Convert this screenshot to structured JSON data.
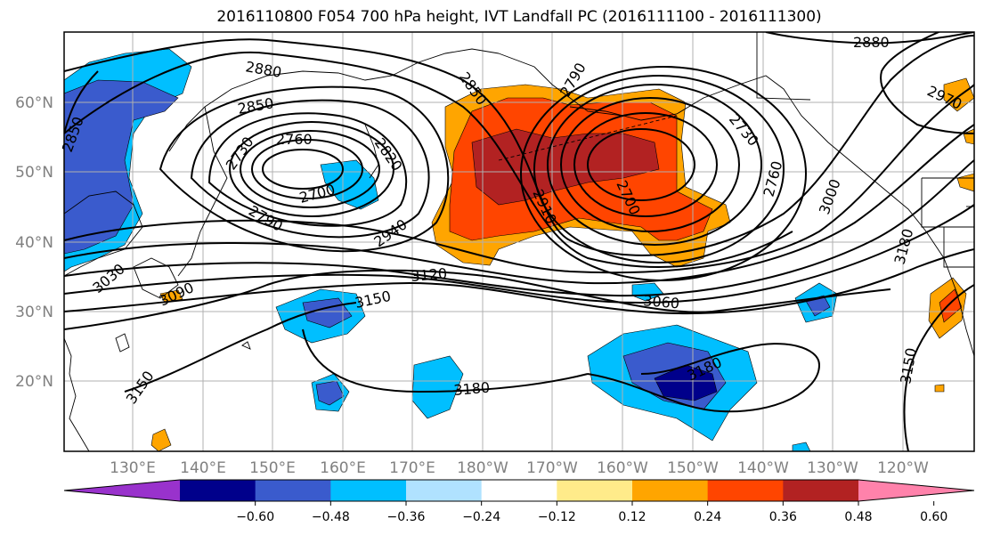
{
  "title": "2016110800 F054 700 hPa height, IVT Landfall PC (2016111100 - 2016111300)",
  "lat_labels": [
    "60°N",
    "50°N",
    "40°N",
    "30°N",
    "20°N"
  ],
  "lon_labels": [
    "130°E",
    "140°E",
    "150°E",
    "160°E",
    "170°E",
    "180°W",
    "170°W",
    "160°W",
    "150°W",
    "140°W",
    "130°W",
    "120°W"
  ],
  "colorbar": {
    "ticks": [
      "−0.60",
      "−0.48",
      "−0.36",
      "−0.24",
      "−0.12",
      "0.12",
      "0.24",
      "0.36",
      "0.48",
      "0.60"
    ],
    "colors": [
      "#9932cc",
      "#00008b",
      "#3a5bcd",
      "#00bfff",
      "#b0e2ff",
      "#ffffff",
      "#ffeb8a",
      "#ffa500",
      "#ff4500",
      "#b22222",
      "#ff82ab"
    ]
  },
  "contour_labels": [
    {
      "text": "2880"
    },
    {
      "text": "2850"
    },
    {
      "text": "2850"
    },
    {
      "text": "2760"
    },
    {
      "text": "2730"
    },
    {
      "text": "2820"
    },
    {
      "text": "2700"
    },
    {
      "text": "2790"
    },
    {
      "text": "2940"
    },
    {
      "text": "3030"
    },
    {
      "text": "3090"
    },
    {
      "text": "3150"
    },
    {
      "text": "3120"
    },
    {
      "text": "2850"
    },
    {
      "text": "2790"
    },
    {
      "text": "2910"
    },
    {
      "text": "2700"
    },
    {
      "text": "2730"
    },
    {
      "text": "2760"
    },
    {
      "text": "3000"
    },
    {
      "text": "2880"
    },
    {
      "text": "2970"
    },
    {
      "text": "3180"
    },
    {
      "text": "3060"
    },
    {
      "text": "3180"
    },
    {
      "text": "3180"
    },
    {
      "text": "3150"
    },
    {
      "text": "3150"
    }
  ]
}
